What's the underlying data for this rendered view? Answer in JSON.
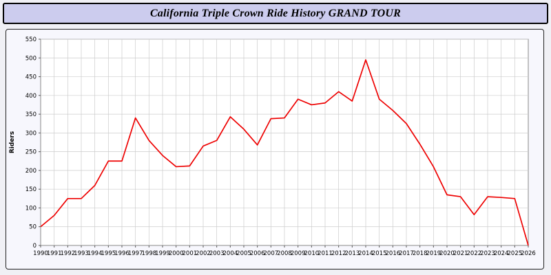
{
  "title_bar": {
    "title": "California Triple Crown Ride History GRAND TOUR",
    "background": "#ccccee"
  },
  "chart_data": {
    "type": "line",
    "title": "California Triple Crown Ride History GRAND TOUR",
    "xlabel": "",
    "ylabel": "Riders",
    "categories": [
      "1990",
      "1991",
      "1992",
      "1993",
      "1994",
      "1995",
      "1996",
      "1997",
      "1998",
      "1999",
      "2000",
      "2001",
      "2002",
      "2003",
      "2004",
      "2005",
      "2006",
      "2007",
      "2008",
      "2009",
      "2010",
      "2011",
      "2012",
      "2013",
      "2014",
      "2015",
      "2016",
      "2017",
      "2018",
      "2019",
      "2020",
      "2021",
      "2022",
      "2023",
      "2024",
      "2025",
      "2026"
    ],
    "values": [
      50,
      80,
      125,
      125,
      160,
      225,
      225,
      340,
      280,
      240,
      210,
      212,
      265,
      280,
      343,
      310,
      268,
      338,
      340,
      390,
      375,
      380,
      410,
      385,
      495,
      390,
      360,
      325,
      270,
      210,
      135,
      130,
      82,
      130,
      128,
      125,
      0
    ],
    "ylim": [
      0,
      550
    ],
    "ytick_step": 50,
    "grid": true,
    "legend_position": "none",
    "line_color": "#ee0000",
    "plot_background": "#ffffff",
    "grid_color": "#cccccc",
    "axis_color": "#888888",
    "tick_label_color": "#000000"
  }
}
